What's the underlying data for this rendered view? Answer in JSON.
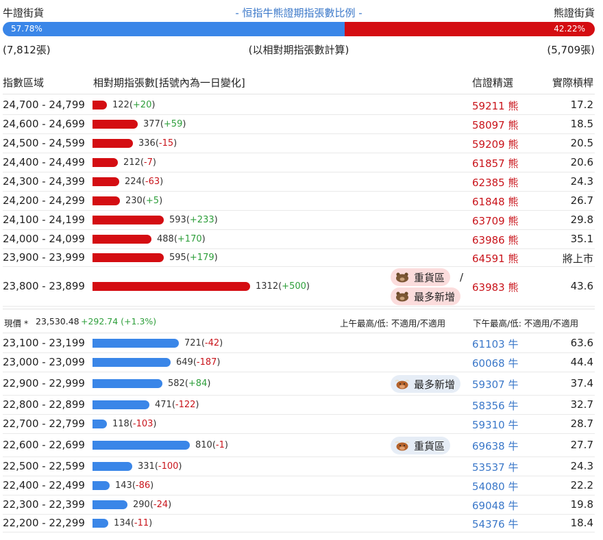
{
  "header": {
    "bull_label": "牛證街貨",
    "title": "- 恒指牛熊證期指張數比例 -",
    "bear_label": "熊證街貨"
  },
  "ratio": {
    "bull_pct": "57.78%",
    "bear_pct": "42.22%",
    "bull_fraction": 0.5778
  },
  "counts": {
    "bull": "(7,812張)",
    "note": "(以相對期指張數計算)",
    "bear": "(5,709張)"
  },
  "columns": {
    "range": "指數區域",
    "contracts": "相對期指張數[括號內為一日變化]",
    "pick": "信證精選",
    "leverage": "實際槓桿"
  },
  "bear_rows": [
    {
      "range": "24,700 - 24,799",
      "count": "122",
      "change": "+20",
      "code": "59211",
      "type": "熊",
      "lev": "17.2",
      "value": 122
    },
    {
      "range": "24,600 - 24,699",
      "count": "377",
      "change": "+59",
      "code": "58097",
      "type": "熊",
      "lev": "18.5",
      "value": 377
    },
    {
      "range": "24,500 - 24,599",
      "count": "336",
      "change": "-15",
      "code": "59209",
      "type": "熊",
      "lev": "20.5",
      "value": 336
    },
    {
      "range": "24,400 - 24,499",
      "count": "212",
      "change": "-7",
      "code": "61857",
      "type": "熊",
      "lev": "20.6",
      "value": 212
    },
    {
      "range": "24,300 - 24,399",
      "count": "224",
      "change": "-63",
      "code": "62385",
      "type": "熊",
      "lev": "24.3",
      "value": 224
    },
    {
      "range": "24,200 - 24,299",
      "count": "230",
      "change": "+5",
      "code": "61848",
      "type": "熊",
      "lev": "26.7",
      "value": 230
    },
    {
      "range": "24,100 - 24,199",
      "count": "593",
      "change": "+233",
      "code": "63709",
      "type": "熊",
      "lev": "29.8",
      "value": 593
    },
    {
      "range": "24,000 - 24,099",
      "count": "488",
      "change": "+170",
      "code": "63986",
      "type": "熊",
      "lev": "35.1",
      "value": 488
    },
    {
      "range": "23,900 - 23,999",
      "count": "595",
      "change": "+179",
      "code": "64591",
      "type": "熊",
      "lev": "將上市",
      "value": 595
    },
    {
      "range": "23,800 - 23,899",
      "count": "1312",
      "change": "+500",
      "code": "63983",
      "type": "熊",
      "lev": "43.6",
      "value": 1312,
      "tags": [
        "重貨區",
        "最多新增"
      ]
    }
  ],
  "current": {
    "label": "現價 *",
    "price": "23,530.48",
    "change": "+292.74 (+1.3%)",
    "am": "上午最高/低: 不適用/不適用",
    "pm": "下午最高/低: 不適用/不適用"
  },
  "bull_rows": [
    {
      "range": "23,100 - 23,199",
      "count": "721",
      "change": "-42",
      "code": "61103",
      "type": "牛",
      "lev": "63.6",
      "value": 721
    },
    {
      "range": "23,000 - 23,099",
      "count": "649",
      "change": "-187",
      "code": "60068",
      "type": "牛",
      "lev": "44.4",
      "value": 649
    },
    {
      "range": "22,900 - 22,999",
      "count": "582",
      "change": "+84",
      "code": "59307",
      "type": "牛",
      "lev": "37.4",
      "value": 582,
      "tags": [
        "最多新增"
      ]
    },
    {
      "range": "22,800 - 22,899",
      "count": "471",
      "change": "-122",
      "code": "58356",
      "type": "牛",
      "lev": "32.7",
      "value": 471
    },
    {
      "range": "22,700 - 22,799",
      "count": "118",
      "change": "-103",
      "code": "59310",
      "type": "牛",
      "lev": "28.7",
      "value": 118
    },
    {
      "range": "22,600 - 22,699",
      "count": "810",
      "change": "-1",
      "code": "69638",
      "type": "牛",
      "lev": "27.7",
      "value": 810,
      "tags": [
        "重貨區"
      ]
    },
    {
      "range": "22,500 - 22,599",
      "count": "331",
      "change": "-100",
      "code": "53537",
      "type": "牛",
      "lev": "24.3",
      "value": 331
    },
    {
      "range": "22,400 - 22,499",
      "count": "143",
      "change": "-86",
      "code": "54080",
      "type": "牛",
      "lev": "22.2",
      "value": 143
    },
    {
      "range": "22,300 - 22,399",
      "count": "290",
      "change": "-24",
      "code": "69048",
      "type": "牛",
      "lev": "19.8",
      "value": 290
    },
    {
      "range": "22,200 - 22,299",
      "count": "134",
      "change": "-11",
      "code": "54376",
      "type": "牛",
      "lev": "18.4",
      "value": 134
    }
  ],
  "colors": {
    "bull": "#3a86e8",
    "bear": "#d40d12",
    "positive": "#2d9e3a",
    "negative": "#c9141b",
    "bull_text": "#3b78c9"
  }
}
